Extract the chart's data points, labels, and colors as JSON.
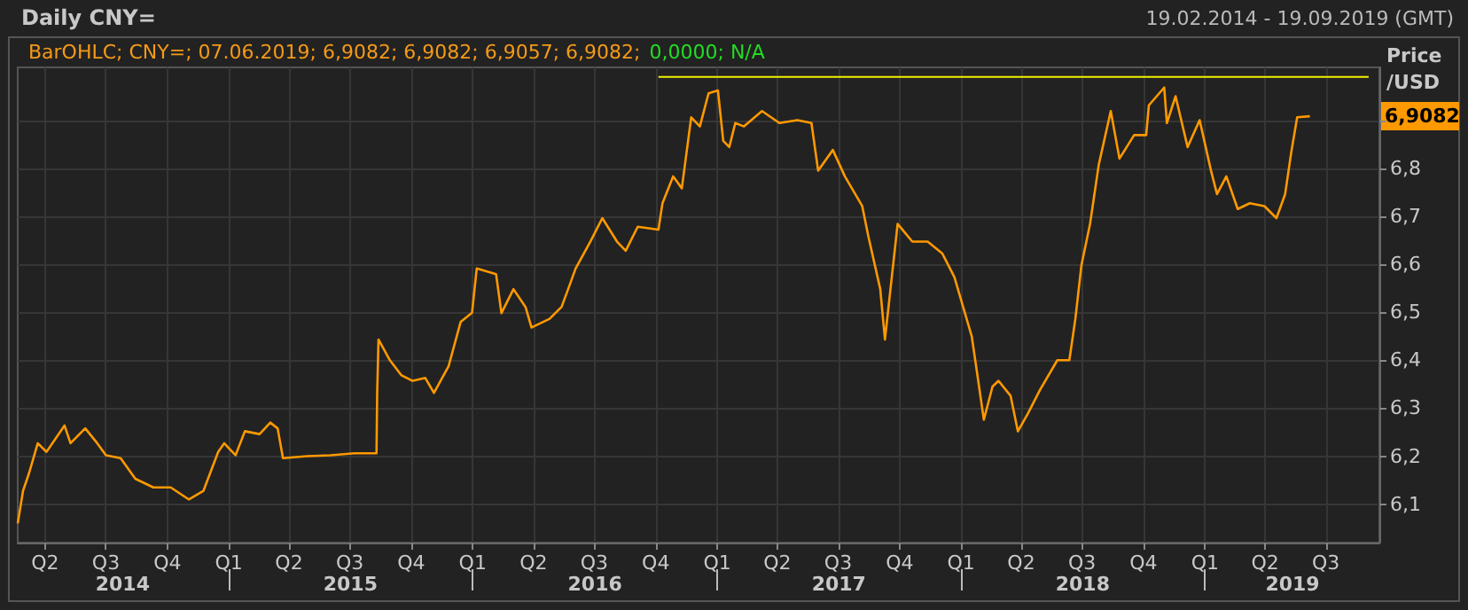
{
  "chart_data": {
    "type": "line",
    "title": "Daily CNY=",
    "subtitle": "19.02.2014 - 19.09.2019 (GMT)",
    "ylabel": "Price /USD",
    "annotations": [
      "BarOHLC; CNY=; 07.06.2019; 6,9082; 6,9082; 6,9057; 6,9082;",
      "0,0000; N/A",
      {
        "text": "6,9082",
        "y": 6.9082
      }
    ],
    "xlim": [
      "2014-02-19",
      "2019-09-19"
    ],
    "xticks": [
      {
        "value": "2014-04-01",
        "label": "Q2"
      },
      {
        "value": "2014-07-01",
        "label": "Q3"
      },
      {
        "value": "2014-10-01",
        "label": "Q4"
      },
      {
        "value": "2015-01-01",
        "label": "Q1"
      },
      {
        "value": "2015-04-01",
        "label": "Q2"
      },
      {
        "value": "2015-07-01",
        "label": "Q3"
      },
      {
        "value": "2015-10-01",
        "label": "Q4"
      },
      {
        "value": "2016-01-01",
        "label": "Q1"
      },
      {
        "value": "2016-04-01",
        "label": "Q2"
      },
      {
        "value": "2016-07-01",
        "label": "Q3"
      },
      {
        "value": "2016-10-01",
        "label": "Q4"
      },
      {
        "value": "2017-01-01",
        "label": "Q1"
      },
      {
        "value": "2017-04-01",
        "label": "Q2"
      },
      {
        "value": "2017-07-01",
        "label": "Q3"
      },
      {
        "value": "2017-10-01",
        "label": "Q4"
      },
      {
        "value": "2018-01-01",
        "label": "Q1"
      },
      {
        "value": "2018-04-01",
        "label": "Q2"
      },
      {
        "value": "2018-07-01",
        "label": "Q3"
      },
      {
        "value": "2018-10-01",
        "label": "Q4"
      },
      {
        "value": "2019-01-01",
        "label": "Q1"
      },
      {
        "value": "2019-04-01",
        "label": "Q2"
      },
      {
        "value": "2019-07-01",
        "label": "Q3"
      }
    ],
    "x2lim": [
      "2014-02-19",
      "2019-09-19"
    ],
    "x2ticks": [
      {
        "value": "2014-07-26",
        "label": "2014"
      },
      {
        "value": "2015-01-01",
        "label": null
      },
      {
        "value": "2015-07-02",
        "label": "2015"
      },
      {
        "value": "2016-01-01",
        "label": null
      },
      {
        "value": "2016-07-02",
        "label": "2016"
      },
      {
        "value": "2017-01-01",
        "label": null
      },
      {
        "value": "2017-07-02",
        "label": "2017"
      },
      {
        "value": "2018-01-01",
        "label": null
      },
      {
        "value": "2018-07-02",
        "label": "2018"
      },
      {
        "value": "2019-01-01",
        "label": null
      },
      {
        "value": "2019-05-12",
        "label": "2019"
      }
    ],
    "ylim": [
      6.02,
      7.01
    ],
    "yticks": [
      {
        "value": 6.1,
        "label": "6,1"
      },
      {
        "value": 6.2,
        "label": "6,2"
      },
      {
        "value": 6.3,
        "label": "6,3"
      },
      {
        "value": 6.4,
        "label": "6,4"
      },
      {
        "value": 6.5,
        "label": "6,5"
      },
      {
        "value": 6.6,
        "label": "6,6"
      },
      {
        "value": 6.7,
        "label": "6,7"
      },
      {
        "value": 6.8,
        "label": "6,8"
      },
      {
        "value": 6.9,
        "label": null
      }
    ],
    "grid": true,
    "marker": "none",
    "line_style": "solid",
    "series": [
      {
        "color": "#ff9900",
        "x": [
          "2014-02-19",
          "2014-02-27",
          "2014-03-08",
          "2014-03-21",
          "2014-04-03",
          "2014-04-30",
          "2014-05-09",
          "2014-05-31",
          "2014-06-18",
          "2014-07-01",
          "2014-07-23",
          "2014-08-14",
          "2014-09-10",
          "2014-10-06",
          "2014-11-02",
          "2014-11-24",
          "2014-12-16",
          "2014-12-25",
          "2015-01-11",
          "2015-01-25",
          "2015-02-16",
          "2015-03-04",
          "2015-03-15",
          "2015-03-23",
          "2015-04-28",
          "2015-06-02",
          "2015-07-08",
          "2015-08-10",
          "2015-08-11",
          "2015-08-13",
          "2015-08-30",
          "2015-09-16",
          "2015-10-03",
          "2015-10-22",
          "2015-11-04",
          "2015-11-26",
          "2015-12-14",
          "2015-12-31",
          "2016-01-07",
          "2016-02-05",
          "2016-02-13",
          "2016-03-02",
          "2016-03-20",
          "2016-03-29",
          "2016-04-25",
          "2016-05-13",
          "2016-05-26",
          "2016-06-03",
          "2016-06-25",
          "2016-07-13",
          "2016-08-04",
          "2016-08-17",
          "2016-09-04",
          "2016-10-05",
          "2016-10-11",
          "2016-10-27",
          "2016-11-09",
          "2016-11-23",
          "2016-12-06",
          "2016-12-19",
          "2017-01-02",
          "2017-01-10",
          "2017-01-19",
          "2017-01-28",
          "2017-02-10",
          "2017-03-09",
          "2017-04-04",
          "2017-05-01",
          "2017-05-22",
          "2017-06-01",
          "2017-06-23",
          "2017-07-11",
          "2017-08-06",
          "2017-08-15",
          "2017-09-02",
          "2017-09-09",
          "2017-09-28",
          "2017-10-20",
          "2017-11-12",
          "2017-12-04",
          "2017-12-22",
          "2018-01-04",
          "2018-01-17",
          "2018-01-26",
          "2018-02-04",
          "2018-02-17",
          "2018-02-26",
          "2018-03-16",
          "2018-03-27",
          "2018-04-11",
          "2018-04-29",
          "2018-05-25",
          "2018-06-12",
          "2018-06-21",
          "2018-06-27",
          "2018-06-30",
          "2018-07-13",
          "2018-07-26",
          "2018-08-13",
          "2018-08-26",
          "2018-09-17",
          "2018-10-05",
          "2018-10-09",
          "2018-11-01",
          "2018-11-05",
          "2018-11-18",
          "2018-12-06",
          "2018-12-24",
          "2019-01-10",
          "2019-01-19",
          "2019-02-02",
          "2019-02-19",
          "2019-03-09",
          "2019-03-31",
          "2019-04-18",
          "2019-05-01",
          "2019-05-10",
          "2019-05-19",
          "2019-06-07"
        ],
        "values": [
          6.06,
          6.128,
          6.165,
          6.227,
          6.209,
          6.264,
          6.227,
          6.258,
          6.227,
          6.202,
          6.196,
          6.153,
          6.135,
          6.135,
          6.11,
          6.128,
          6.209,
          6.227,
          6.202,
          6.252,
          6.246,
          6.27,
          6.258,
          6.196,
          6.2,
          6.202,
          6.206,
          6.206,
          6.332,
          6.443,
          6.4,
          6.369,
          6.357,
          6.363,
          6.332,
          6.388,
          6.48,
          6.499,
          6.591,
          6.579,
          6.498,
          6.548,
          6.511,
          6.468,
          6.486,
          6.511,
          6.56,
          6.591,
          6.647,
          6.696,
          6.647,
          6.628,
          6.678,
          6.672,
          6.727,
          6.783,
          6.758,
          6.906,
          6.887,
          6.956,
          6.962,
          6.857,
          6.844,
          6.894,
          6.887,
          6.919,
          6.894,
          6.9,
          6.894,
          6.795,
          6.838,
          6.783,
          6.721,
          6.659,
          6.548,
          6.443,
          6.684,
          6.647,
          6.647,
          6.622,
          6.573,
          6.511,
          6.449,
          6.363,
          6.276,
          6.345,
          6.357,
          6.326,
          6.252,
          6.289,
          6.338,
          6.4,
          6.4,
          6.486,
          6.56,
          6.597,
          6.684,
          6.807,
          6.919,
          6.82,
          6.869,
          6.869,
          6.931,
          6.968,
          6.894,
          6.95,
          6.844,
          6.9,
          6.795,
          6.746,
          6.783,
          6.715,
          6.727,
          6.721,
          6.696,
          6.746,
          6.832,
          6.906,
          6.9082
        ]
      },
      {
        "color": "#f2f200",
        "x": [
          "2016-10-05",
          "2019-09-03"
        ],
        "values": [
          6.99,
          6.99
        ]
      }
    ]
  }
}
